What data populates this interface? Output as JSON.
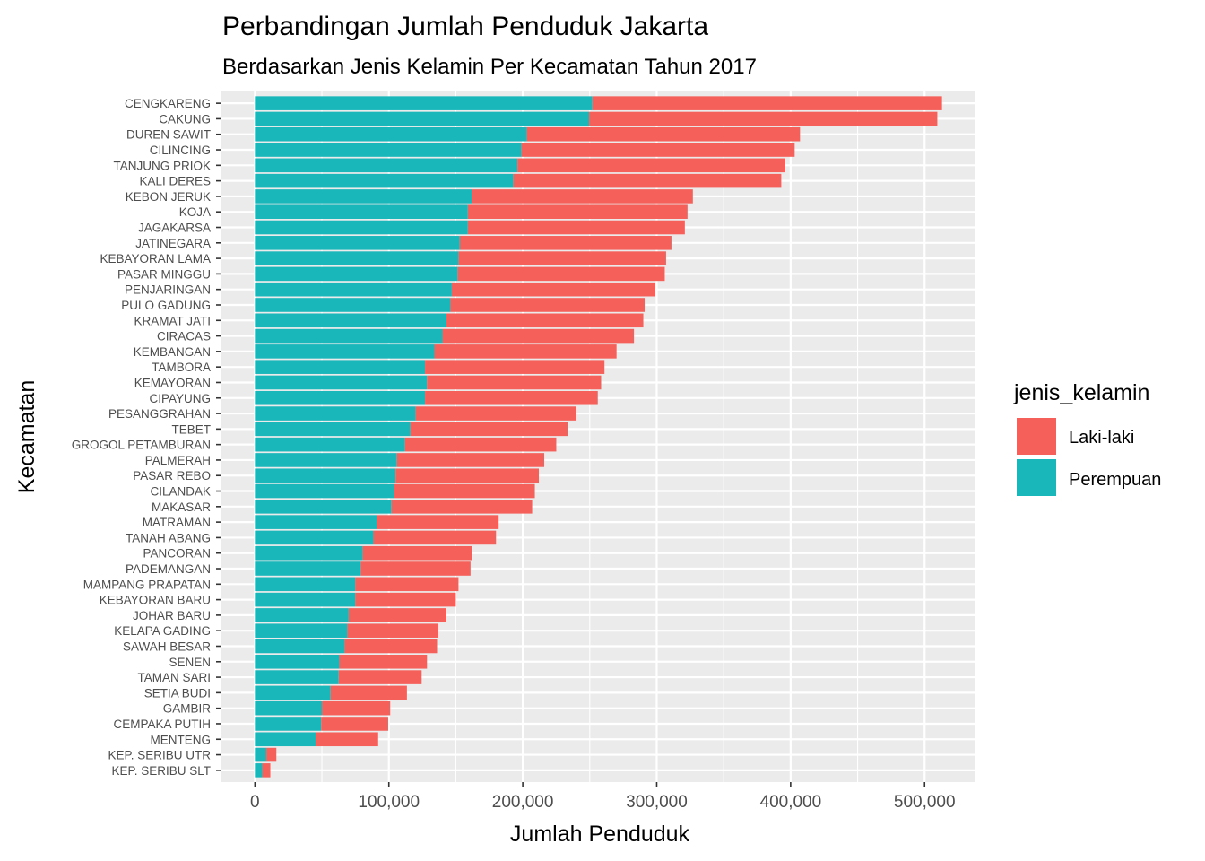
{
  "chart_data": {
    "type": "bar",
    "orientation": "horizontal",
    "stacked": true,
    "title": "Perbandingan Jumlah Penduduk Jakarta",
    "subtitle": "Berdasarkan Jenis Kelamin Per Kecamatan Tahun 2017",
    "xlabel": "Jumlah Penduduk",
    "ylabel": "Kecamatan",
    "xlim": [
      -25000,
      538000
    ],
    "x_ticks": [
      0,
      100000,
      200000,
      300000,
      400000,
      500000
    ],
    "x_tick_labels": [
      "0",
      "100,000",
      "200,000",
      "300,000",
      "400,000",
      "500,000"
    ],
    "grid": true,
    "legend": {
      "title": "jenis_kelamin",
      "position": "right"
    },
    "categories": [
      "CENGKARENG",
      "CAKUNG",
      "DUREN SAWIT",
      "CILINCING",
      "TANJUNG PRIOK",
      "KALI DERES",
      "KEBON JERUK",
      "KOJA",
      "JAGAKARSA",
      "JATINEGARA",
      "KEBAYORAN LAMA",
      "PASAR MINGGU",
      "PENJARINGAN",
      "PULO GADUNG",
      "KRAMAT JATI",
      "CIRACAS",
      "KEMBANGAN",
      "TAMBORA",
      "KEMAYORAN",
      "CIPAYUNG",
      "PESANGGRAHAN",
      "TEBET",
      "GROGOL PETAMBURAN",
      "PALMERAH",
      "PASAR REBO",
      "CILANDAK",
      "MAKASAR",
      "MATRAMAN",
      "TANAH ABANG",
      "PANCORAN",
      "PADEMANGAN",
      "MAMPANG PRAPATAN",
      "KEBAYORAN BARU",
      "JOHAR BARU",
      "KELAPA GADING",
      "SAWAH BESAR",
      "SENEN",
      "TAMAN SARI",
      "SETIA BUDI",
      "GAMBIR",
      "CEMPAKA PUTIH",
      "MENTENG",
      "KEP. SERIBU UTR",
      "KEP. SERIBU SLT"
    ],
    "series": [
      {
        "name": "Perempuan",
        "color": "#19B6BA",
        "values": [
          252000,
          249500,
          203000,
          199000,
          196000,
          193000,
          162000,
          159000,
          159000,
          153000,
          152000,
          151500,
          147000,
          146000,
          143000,
          140000,
          134000,
          127000,
          128500,
          127000,
          120000,
          116000,
          112000,
          106000,
          105000,
          104000,
          102000,
          91000,
          88500,
          80500,
          79000,
          75000,
          75000,
          70000,
          69000,
          67000,
          63000,
          62500,
          56500,
          50000,
          49500,
          45500,
          8500,
          5500
        ]
      },
      {
        "name": "Laki-laki",
        "color": "#F5605A",
        "values": [
          261000,
          260000,
          204000,
          204000,
          200000,
          200000,
          165000,
          164000,
          162000,
          158000,
          155000,
          154500,
          152000,
          145000,
          147000,
          143000,
          136000,
          134000,
          130000,
          129000,
          120000,
          117500,
          113000,
          110000,
          107000,
          105000,
          105000,
          91000,
          91500,
          81500,
          82000,
          77000,
          75000,
          73000,
          68000,
          69000,
          65500,
          62000,
          57000,
          51000,
          50000,
          46500,
          7500,
          6000
        ]
      }
    ]
  }
}
